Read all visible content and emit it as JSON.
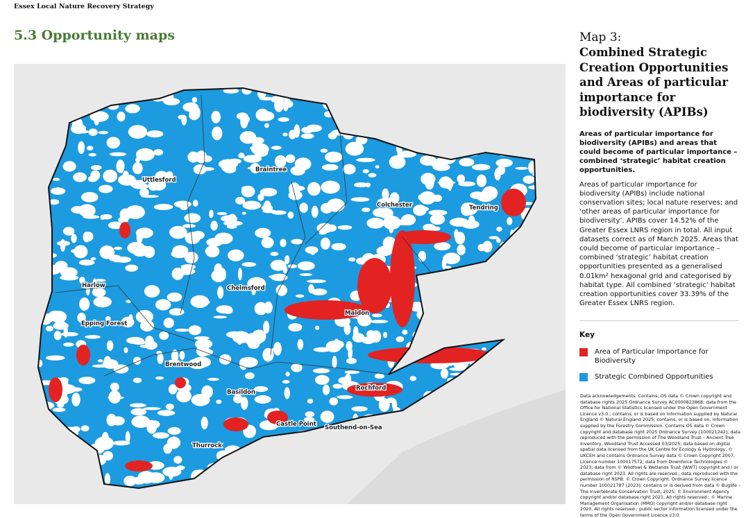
{
  "header": {
    "doc_title": "Essex Local Nature Recovery Strategy",
    "section_title": "5.3 Opportunity maps"
  },
  "sidebar": {
    "map_number": "Map 3:",
    "map_title": "Combined Strategic Creation Opportunities and Areas of particular importance for biodiversity (APIBs)",
    "lead": "Areas of particular importance for biodiversity (APIBs) and areas that could become of particular importance – combined ‘strategic’ habitat creation opportunities.",
    "body": "Areas of particular importance for biodiversity (APIBs) include national conservation sites; local nature reserves; and ‘other areas of particular importance for biodiversity’. APIBs cover 14.52% of the Greater Essex LNRS region in total. All input datasets correct as of March 2025. Areas that could become of particular importance – combined ‘strategic’ habitat creation opportunities presented as a generalised 0.01km² hexagonal grid and categorised by habitat type. All combined ‘strategic’ habitat creation opportunities cover 33.39% of the Greater Essex LNRS region.",
    "key": {
      "heading": "Key",
      "items": [
        {
          "label": "Area of Particular Importance for Biodiversity",
          "color": "#e32222"
        },
        {
          "label": "Strategic Combined Opportunities",
          "color": "#1c9be0"
        }
      ]
    },
    "acknowledgements": "Data acknowledgements: Contains; OS data © Crown copyright and database rights 2025 Ordnance Survey AC0000823868; data from the Office for National Statistics licensed under the Open Government Licence v3.0.; contains, or is based on information supplied by Natural England © Natural England 2025; contains, or is based on, information supplied by the Forestry Commission. Contains OS data © Crown copyright and database right 2025 Ordnance Survey [100021242]; data reproduced with the permission of The Woodland Trust – Ancient Tree Inventory, Woodland Trust Accessed 03/2025; data based on digital spatial data licensed from the UK Centre for Ecology & Hydrology, © UKCEH and contains Ordnance Survey data © Crown Copyright 2007, Licence number 100017572; data from Downforce Technologies © 2023; data from © Wildfowl & Wetlands Trust (WWT) copyright and / or database right 2023. All rights are reserved.; data reproduced with the permission of RSPB. © Crown Copyright. Ordnance Survey licence number 100021787 (2023); contains or is derived from data © Buglife – The Invertebrate Conservation Trust, 2025; © Environment Agency copyright and/or database right 2021. All rights reserved.; © Marine Management Organisation (MMO) copyright and/or database right 2020. All rights reserved.; public sector information licensed under the terms of the Open Government Licence v3.0."
  },
  "map": {
    "districts": [
      "Uttlesford",
      "Braintree",
      "Colchester",
      "Tendring",
      "Harlow",
      "Epping Forest",
      "Chelmsford",
      "Maldon",
      "Brentwood",
      "Basildon",
      "Rochford",
      "Castle Point",
      "Southend-on-Sea",
      "Thurrock"
    ]
  }
}
